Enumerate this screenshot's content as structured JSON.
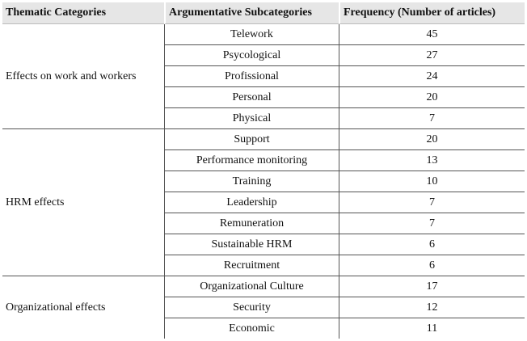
{
  "header": [
    "Thematic Categories",
    "Argumentative Subcategories",
    "Frequency (Number of articles)"
  ],
  "groups": [
    {
      "category": "Effects on work and workers",
      "rows": [
        {
          "subcategory": "Telework",
          "frequency": 45
        },
        {
          "subcategory": "Psycological",
          "frequency": 27
        },
        {
          "subcategory": "Profissional",
          "frequency": 24
        },
        {
          "subcategory": "Personal",
          "frequency": 20
        },
        {
          "subcategory": "Physical",
          "frequency": 7
        }
      ]
    },
    {
      "category": "HRM effects",
      "rows": [
        {
          "subcategory": "Support",
          "frequency": 20
        },
        {
          "subcategory": "Performance monitoring",
          "frequency": 13
        },
        {
          "subcategory": "Training",
          "frequency": 10
        },
        {
          "subcategory": "Leadership",
          "frequency": 7
        },
        {
          "subcategory": "Remuneration",
          "frequency": 7
        },
        {
          "subcategory": "Sustainable HRM",
          "frequency": 6
        },
        {
          "subcategory": "Recruitment",
          "frequency": 6
        }
      ]
    },
    {
      "category": "Organizational effects",
      "rows": [
        {
          "subcategory": "Organizational Culture",
          "frequency": 17
        },
        {
          "subcategory": "Security",
          "frequency": 12
        },
        {
          "subcategory": "Economic",
          "frequency": 11
        }
      ]
    }
  ]
}
